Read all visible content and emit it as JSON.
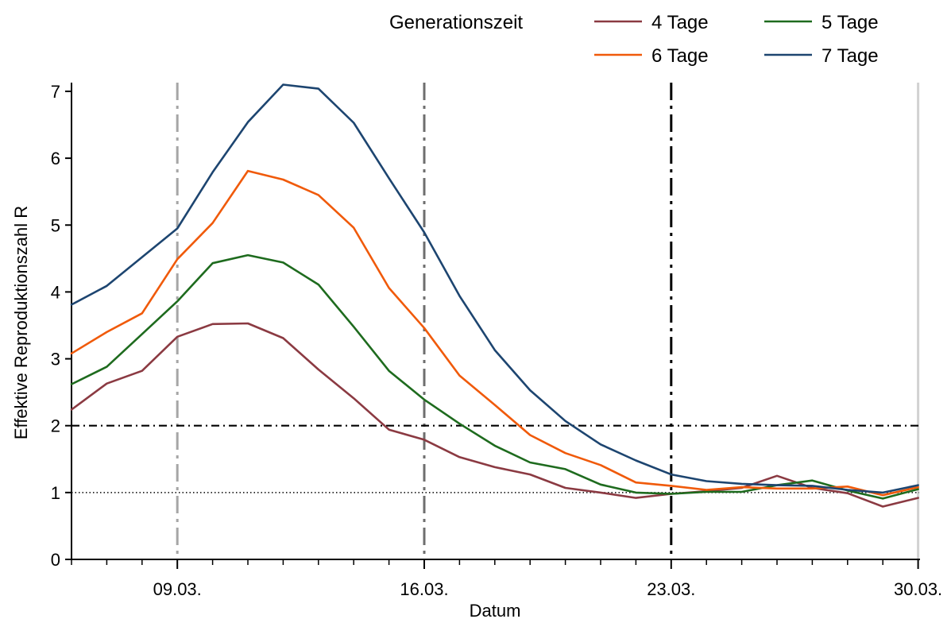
{
  "chart_data": {
    "type": "line",
    "xlabel": "Datum",
    "ylabel": "Effektive Reproduktionszahl R",
    "ylim": [
      0,
      7
    ],
    "y_ticks": [
      0,
      1,
      2,
      3,
      4,
      5,
      6,
      7
    ],
    "x_dates": [
      "06.03.",
      "07.03.",
      "08.03.",
      "09.03.",
      "10.03.",
      "11.03.",
      "12.03.",
      "13.03.",
      "14.03.",
      "15.03.",
      "16.03.",
      "17.03.",
      "18.03.",
      "19.03.",
      "20.03.",
      "21.03.",
      "22.03.",
      "23.03.",
      "24.03.",
      "25.03.",
      "26.03.",
      "27.03.",
      "28.03.",
      "29.03.",
      "30.03."
    ],
    "x_tick_labels": [
      "09.03.",
      "16.03.",
      "23.03.",
      "30.03."
    ],
    "legend_title": "Generationszeit",
    "legend_position": "top",
    "grid": false,
    "vertical_markers": [
      "09.03.",
      "16.03.",
      "23.03.",
      "30.03."
    ],
    "reference_lines": [
      {
        "y": 2,
        "style": "dash-dot"
      },
      {
        "y": 1,
        "style": "dotted"
      }
    ],
    "series": [
      {
        "name": "4 Tage",
        "color": "#8b3a42",
        "values": [
          2.24,
          2.63,
          2.82,
          3.33,
          3.52,
          3.53,
          3.31,
          2.84,
          2.41,
          1.94,
          1.79,
          1.53,
          1.38,
          1.27,
          1.07,
          1.0,
          0.92,
          0.98,
          1.02,
          1.07,
          1.25,
          1.07,
          0.99,
          0.79,
          0.92
        ]
      },
      {
        "name": "5 Tage",
        "color": "#1e6b1e",
        "values": [
          2.62,
          2.88,
          3.37,
          3.86,
          4.43,
          4.55,
          4.44,
          4.11,
          3.48,
          2.82,
          2.39,
          2.03,
          1.7,
          1.45,
          1.35,
          1.12,
          1.0,
          0.98,
          1.01,
          1.01,
          1.11,
          1.18,
          1.03,
          0.91,
          1.05
        ]
      },
      {
        "name": "6 Tage",
        "color": "#f05a0a",
        "values": [
          3.08,
          3.4,
          3.68,
          4.49,
          5.03,
          5.81,
          5.68,
          5.45,
          4.96,
          4.06,
          3.46,
          2.75,
          2.31,
          1.86,
          1.59,
          1.41,
          1.15,
          1.1,
          1.04,
          1.08,
          1.06,
          1.06,
          1.09,
          0.96,
          1.08
        ]
      },
      {
        "name": "7 Tage",
        "color": "#1d4570",
        "values": [
          3.81,
          4.09,
          4.52,
          4.95,
          5.79,
          6.54,
          7.1,
          7.04,
          6.53,
          5.7,
          4.89,
          3.94,
          3.13,
          2.53,
          2.07,
          1.72,
          1.48,
          1.27,
          1.17,
          1.13,
          1.11,
          1.1,
          1.04,
          1.0,
          1.11
        ]
      }
    ]
  }
}
